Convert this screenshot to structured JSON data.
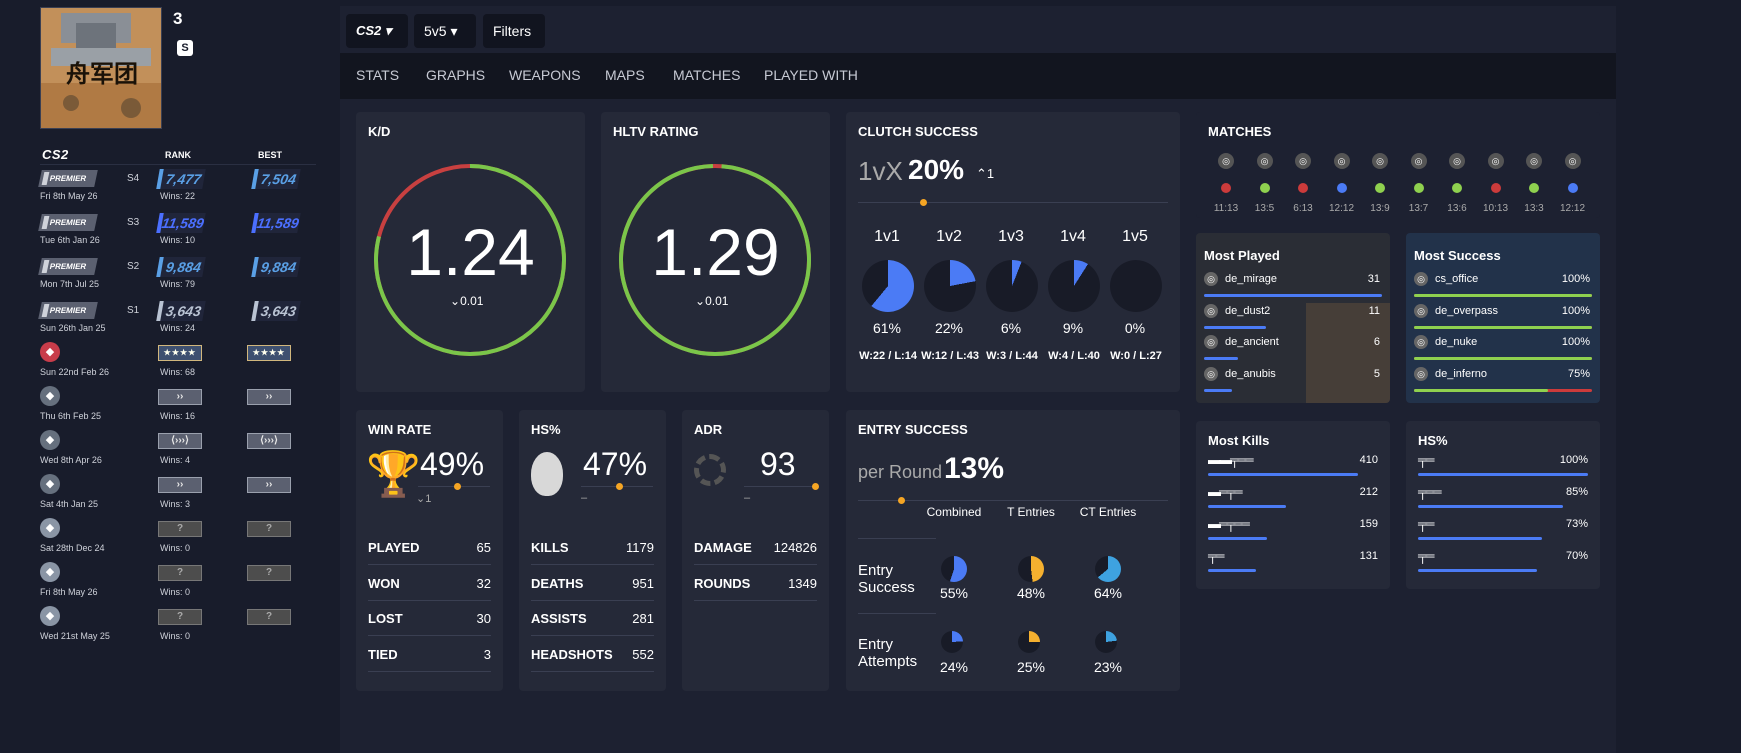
{
  "profile": {
    "name": "3",
    "avatar_text": "舟军团"
  },
  "left": {
    "logo": "CS2",
    "col_rank": "RANK",
    "col_best": "BEST",
    "rows": [
      {
        "badge": "PREMIER",
        "season": "S4",
        "date": "Fri 8th May 26",
        "rank": "7,477",
        "wins": "Wins: 22",
        "best": "7,504",
        "color": "#5aa0e6"
      },
      {
        "badge": "PREMIER",
        "season": "S3",
        "date": "Tue 6th Jan 26",
        "rank": "11,589",
        "wins": "Wins: 10",
        "best": "11,589",
        "color": "#4b6fff"
      },
      {
        "badge": "PREMIER",
        "season": "S2",
        "date": "Mon 7th Jul 25",
        "rank": "9,884",
        "wins": "Wins: 79",
        "best": "9,884",
        "color": "#5aa0e6"
      },
      {
        "badge": "PREMIER",
        "season": "S1",
        "date": "Sun 26th Jan 25",
        "rank": "3,643",
        "wins": "Wins: 24",
        "best": "3,643",
        "color": "#b9c3d3"
      },
      {
        "date": "Sun 22nd Feb 26",
        "rank": "★★★★",
        "wins": "Wins: 68",
        "best": "★★★★",
        "icon": "hexagon-badge-icon",
        "style": "gold"
      },
      {
        "date": "Thu 6th Feb 25",
        "rank": "››",
        "wins": "Wins: 16",
        "best": "››",
        "icon": "circle-badge-icon",
        "style": "silver"
      },
      {
        "date": "Wed 8th Apr 26",
        "rank": "⟨›››⟩",
        "wins": "Wins: 4",
        "best": "⟨›››⟩",
        "icon": "red-badge-icon",
        "style": "silver"
      },
      {
        "date": "Sat 4th Jan 25",
        "rank": "››",
        "wins": "Wins: 3",
        "best": "››",
        "icon": "square-badge-icon",
        "style": "silver"
      },
      {
        "date": "Sat 28th Dec 24",
        "rank": "?",
        "wins": "Wins: 0",
        "best": "?",
        "icon": "diamond-badge-icon",
        "style": "q"
      },
      {
        "date": "Fri 8th May 26",
        "rank": "?",
        "wins": "Wins: 0",
        "best": "?",
        "icon": "star-badge-icon",
        "style": "q"
      },
      {
        "date": "Wed 21st May 25",
        "rank": "?",
        "wins": "Wins: 0",
        "best": "?",
        "icon": "shield-badge-icon",
        "style": "q"
      }
    ]
  },
  "topbar": {
    "game": "CS2",
    "mode": "5v5",
    "filters": "Filters"
  },
  "nav": [
    "STATS",
    "GRAPHS",
    "WEAPONS",
    "MAPS",
    "MATCHES",
    "PLAYED WITH"
  ],
  "kd": {
    "title": "K/D",
    "value": "1.24",
    "delta": "0.01",
    "fill": 0.79
  },
  "hltv": {
    "title": "HLTV RATING",
    "value": "1.29",
    "delta": "0.01",
    "fill": 0.985
  },
  "clutch": {
    "title": "CLUTCH SUCCESS",
    "prefix": "1vX",
    "pct": "20%",
    "delta": "1",
    "cols": [
      {
        "h": "1v1",
        "p": "61%",
        "w": "W:22 / L:14",
        "v": 0.61
      },
      {
        "h": "1v2",
        "p": "22%",
        "w": "W:12 / L:43",
        "v": 0.22
      },
      {
        "h": "1v3",
        "p": "6%",
        "w": "W:3 / L:44",
        "v": 0.06
      },
      {
        "h": "1v4",
        "p": "9%",
        "w": "W:4 / L:40",
        "v": 0.09
      },
      {
        "h": "1v5",
        "p": "0%",
        "w": "W:0 / L:27",
        "v": 0.0
      }
    ]
  },
  "winrate": {
    "title": "WIN RATE",
    "pct": "49%",
    "delta": "1",
    "rows": [
      [
        "PLAYED",
        "65"
      ],
      [
        "WON",
        "32"
      ],
      [
        "LOST",
        "30"
      ],
      [
        "TIED",
        "3"
      ]
    ]
  },
  "hs": {
    "title": "HS%",
    "pct": "47%",
    "delta": "–",
    "rows": [
      [
        "KILLS",
        "1179"
      ],
      [
        "DEATHS",
        "951"
      ],
      [
        "ASSISTS",
        "281"
      ],
      [
        "HEADSHOTS",
        "552"
      ]
    ]
  },
  "adr": {
    "title": "ADR",
    "value": "93",
    "delta": "–",
    "rows": [
      [
        "DAMAGE",
        "124826"
      ],
      [
        "ROUNDS",
        "1349"
      ]
    ]
  },
  "entry": {
    "title": "ENTRY SUCCESS",
    "prefix": "per Round",
    "pct": "13%",
    "cols": [
      "Combined",
      "T Entries",
      "CT Entries"
    ],
    "row1": "Entry Success",
    "row2": "Entry Attempts",
    "success": [
      {
        "p": "55%",
        "v": 0.55
      },
      {
        "p": "48%",
        "v": 0.48
      },
      {
        "p": "64%",
        "v": 0.64
      }
    ],
    "attempts": [
      {
        "p": "24%",
        "v": 0.24
      },
      {
        "p": "25%",
        "v": 0.25
      },
      {
        "p": "23%",
        "v": 0.23
      }
    ]
  },
  "matches": {
    "title": "MATCHES",
    "items": [
      {
        "score": "11:13",
        "result": "loss"
      },
      {
        "score": "13:5",
        "result": "win"
      },
      {
        "score": "6:13",
        "result": "loss"
      },
      {
        "score": "12:12",
        "result": "tie"
      },
      {
        "score": "13:9",
        "result": "win"
      },
      {
        "score": "13:7",
        "result": "win"
      },
      {
        "score": "13:6",
        "result": "win"
      },
      {
        "score": "10:13",
        "result": "loss"
      },
      {
        "score": "13:3",
        "result": "win"
      },
      {
        "score": "12:12",
        "result": "tie"
      }
    ]
  },
  "most_played": {
    "title": "Most Played",
    "items": [
      {
        "map": "de_mirage",
        "v": "31",
        "f": 1.0
      },
      {
        "map": "de_dust2",
        "v": "11",
        "f": 0.35
      },
      {
        "map": "de_ancient",
        "v": "6",
        "f": 0.19
      },
      {
        "map": "de_anubis",
        "v": "5",
        "f": 0.16
      }
    ]
  },
  "most_success": {
    "title": "Most Success",
    "items": [
      {
        "map": "cs_office",
        "v": "100%",
        "f": 1.0
      },
      {
        "map": "de_overpass",
        "v": "100%",
        "f": 1.0
      },
      {
        "map": "de_nuke",
        "v": "100%",
        "f": 1.0
      },
      {
        "map": "de_inferno",
        "v": "75%",
        "f": 0.75
      }
    ]
  },
  "most_kills": {
    "title": "Most Kills",
    "items": [
      {
        "v": "410",
        "f": 1.0
      },
      {
        "v": "212",
        "f": 0.52
      },
      {
        "v": "159",
        "f": 0.39
      },
      {
        "v": "131",
        "f": 0.32
      }
    ]
  },
  "hs_weapons": {
    "title": "HS%",
    "items": [
      {
        "v": "100%",
        "f": 1.0
      },
      {
        "v": "85%",
        "f": 0.85
      },
      {
        "v": "73%",
        "f": 0.73
      },
      {
        "v": "70%",
        "f": 0.7
      }
    ]
  },
  "colors": {
    "win": "#8fd14f",
    "loss": "#cc3b3b",
    "tie": "#4b7bf5",
    "accent": "#f5a524",
    "blue": "#4b7bf5",
    "yellow": "#f5b02f",
    "sky": "#3ea2e0"
  }
}
